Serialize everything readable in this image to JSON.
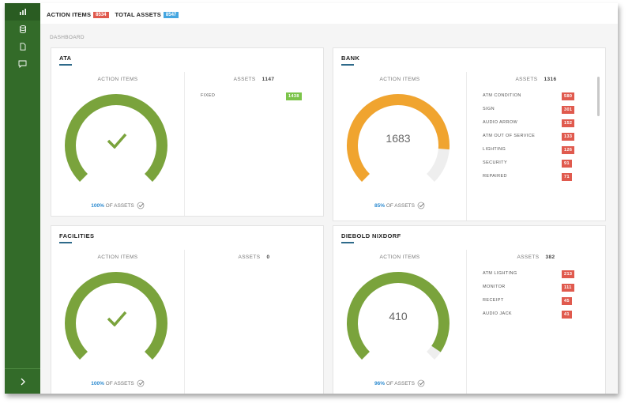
{
  "topbar": {
    "action_items_label": "ACTION ITEMS",
    "action_items_count": "8534",
    "total_assets_label": "TOTAL ASSETS",
    "total_assets_count": "8547"
  },
  "breadcrumb": "DASHBOARD",
  "sidebar": {
    "items": [
      {
        "icon": "bar-chart-icon"
      },
      {
        "icon": "database-icon"
      },
      {
        "icon": "document-icon"
      },
      {
        "icon": "comment-icon"
      }
    ],
    "expand_icon": "chevron-right-icon"
  },
  "colors": {
    "green": "#7aa33c",
    "orange": "#f0a42f",
    "track": "#eeeeee",
    "badge_red": "#e05a4e",
    "badge_green": "#7cc44a",
    "badge_blue": "#45a6e0"
  },
  "cards": [
    {
      "title": "ATA",
      "action_items_label": "ACTION ITEMS",
      "gauge_fraction": 1.0,
      "gauge_color": "#7aa33c",
      "gauge_value": "",
      "show_check": true,
      "percent": "100%",
      "of_assets": "OF ASSETS",
      "assets_label": "ASSETS",
      "assets_count": "1147",
      "rows": [
        {
          "label": "FIXED",
          "value": "1438",
          "color": "green"
        }
      ]
    },
    {
      "title": "BANK",
      "action_items_label": "ACTION ITEMS",
      "gauge_fraction": 0.85,
      "gauge_color": "#f0a42f",
      "gauge_value": "1683",
      "show_check": false,
      "percent": "85%",
      "of_assets": "OF ASSETS",
      "assets_label": "ASSETS",
      "assets_count": "1316",
      "rows": [
        {
          "label": "ATM CONDITION",
          "value": "580",
          "color": "red"
        },
        {
          "label": "SIGN",
          "value": "301",
          "color": "red"
        },
        {
          "label": "AUDIO ARROW",
          "value": "152",
          "color": "red"
        },
        {
          "label": "ATM OUT OF SERVICE",
          "value": "133",
          "color": "red"
        },
        {
          "label": "LIGHTING",
          "value": "126",
          "color": "red"
        },
        {
          "label": "SECURITY",
          "value": "91",
          "color": "red"
        },
        {
          "label": "REPAIRED",
          "value": "71",
          "color": "red"
        }
      ]
    },
    {
      "title": "FACILITIES",
      "action_items_label": "ACTION ITEMS",
      "gauge_fraction": 1.0,
      "gauge_color": "#7aa33c",
      "gauge_value": "",
      "show_check": true,
      "percent": "100%",
      "of_assets": "OF ASSETS",
      "assets_label": "ASSETS",
      "assets_count": "0",
      "rows": []
    },
    {
      "title": "DIEBOLD NIXDORF",
      "action_items_label": "ACTION ITEMS",
      "gauge_fraction": 0.96,
      "gauge_color": "#7aa33c",
      "gauge_value": "410",
      "show_check": false,
      "percent": "96%",
      "of_assets": "OF ASSETS",
      "assets_label": "ASSETS",
      "assets_count": "382",
      "rows": [
        {
          "label": "ATM LIGHTING",
          "value": "213",
          "color": "red"
        },
        {
          "label": "MONITOR",
          "value": "111",
          "color": "red"
        },
        {
          "label": "RECEIPT",
          "value": "45",
          "color": "red"
        },
        {
          "label": "AUDIO JACK",
          "value": "41",
          "color": "red"
        }
      ]
    }
  ]
}
